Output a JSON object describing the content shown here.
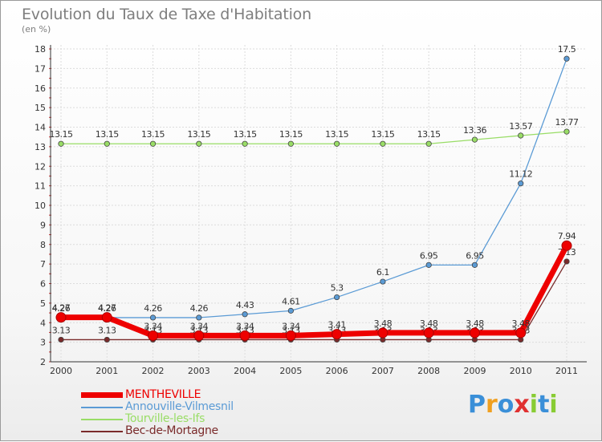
{
  "chart_data": {
    "type": "line",
    "title": "Evolution du Taux de Taxe d'Habitation",
    "subtitle": "(en %)",
    "categories": [
      "2000",
      "2001",
      "2002",
      "2003",
      "2004",
      "2005",
      "2006",
      "2007",
      "2008",
      "2009",
      "2010",
      "2011"
    ],
    "ylim": [
      2,
      18
    ],
    "yticks": [
      "2",
      "3",
      "4",
      "5",
      "6",
      "7",
      "8",
      "9",
      "10",
      "11",
      "12",
      "13",
      "14",
      "15",
      "16",
      "17",
      "18"
    ],
    "grid": true,
    "legend_position": "bottom-left",
    "series": [
      {
        "name": "Tourville-les-Ifs",
        "color": "#99dd66",
        "values": [
          13.15,
          13.15,
          13.15,
          13.15,
          13.15,
          13.15,
          13.15,
          13.15,
          13.15,
          13.36,
          13.57,
          13.77
        ],
        "labels": [
          "13.15",
          "13.15",
          "13.15",
          "13.15",
          "13.15",
          "13.15",
          "13.15",
          "13.15",
          "13.15",
          "13.36",
          "13.57",
          "13.77"
        ]
      },
      {
        "name": "Annouville-Vilmesnil",
        "color": "#5b9bd5",
        "values": [
          4.26,
          4.26,
          4.26,
          4.26,
          4.43,
          4.61,
          5.3,
          6.1,
          6.95,
          6.95,
          11.12,
          17.5
        ],
        "labels": [
          "4.26",
          "4.26",
          "4.26",
          "4.26",
          "4.43",
          "4.61",
          "5.3",
          "6.1",
          "6.95",
          "6.95",
          "11.12",
          "17.5"
        ]
      },
      {
        "name": "Bec-de-Mortagne",
        "color": "#7a2a2a",
        "values": [
          3.13,
          3.13,
          3.13,
          3.13,
          3.13,
          3.13,
          3.13,
          3.13,
          3.13,
          3.13,
          3.13,
          7.13
        ],
        "labels": [
          "3.13",
          "3.13",
          "3.13",
          "3.13",
          "3.13",
          "3.13",
          "3.13",
          "3.13",
          "3.13",
          "3.13",
          "3.13",
          "7.13"
        ]
      },
      {
        "name": "MENTHEVILLE",
        "color": "#ee0000",
        "values": [
          4.27,
          4.27,
          3.34,
          3.34,
          3.34,
          3.34,
          3.41,
          3.48,
          3.48,
          3.48,
          3.48,
          7.94
        ],
        "labels": [
          "4.27",
          "4.27",
          "3.34",
          "3.34",
          "3.34",
          "3.34",
          "3.41",
          "3.48",
          "3.48",
          "3.48",
          "3.48",
          "7.94"
        ]
      }
    ]
  },
  "legend": [
    {
      "name": "MENTHEVILLE",
      "color": "#ee0000",
      "thick": true
    },
    {
      "name": "Annouville-Vilmesnil",
      "color": "#5b9bd5",
      "thick": false
    },
    {
      "name": "Tourville-les-Ifs",
      "color": "#99dd66",
      "thick": false
    },
    {
      "name": "Bec-de-Mortagne",
      "color": "#7a2a2a",
      "thick": false
    }
  ],
  "logo": {
    "letters": [
      "P",
      "r",
      "o",
      "x",
      "i",
      "t",
      "i"
    ],
    "colors": [
      "#3a8fd8",
      "#f0a020",
      "#3a8fd8",
      "#e03030",
      "#88cc33",
      "#3a8fd8",
      "#88cc33"
    ]
  }
}
